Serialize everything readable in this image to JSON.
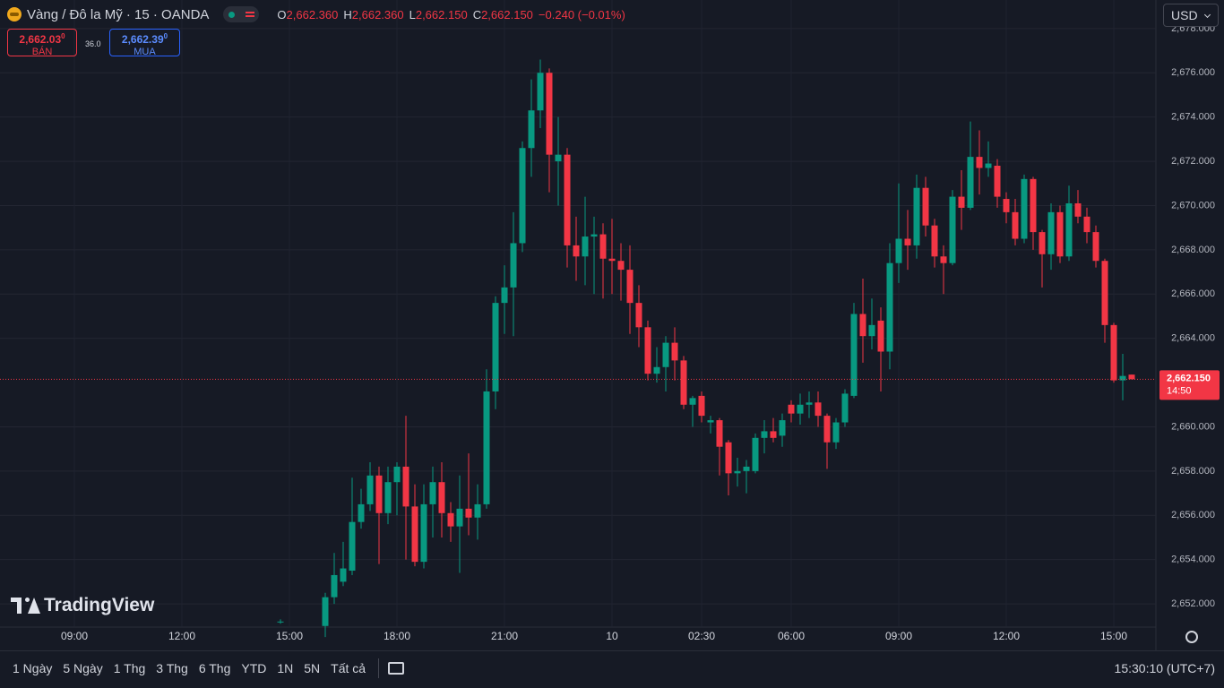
{
  "header": {
    "symbol": "Vàng / Đô la Mỹ · 15 · OANDA",
    "ohlc": [
      {
        "key": "O",
        "value": "2,662.360"
      },
      {
        "key": "H",
        "value": "2,662.360"
      },
      {
        "key": "L",
        "value": "2,662.150"
      },
      {
        "key": "C",
        "value": "2,662.150"
      }
    ],
    "change": "−0.240 (−0.01%)"
  },
  "quote": {
    "sell_price": "2,662.03",
    "sell_sup": "0",
    "sell_label": "BÁN",
    "spread": "36.0",
    "buy_price": "2,662.39",
    "buy_sup": "0",
    "buy_label": "MUA"
  },
  "currency": "USD",
  "watermark": "TradingView",
  "toolbar": {
    "ranges": [
      "1 Ngày",
      "5 Ngày",
      "1 Thg",
      "3 Thg",
      "6 Thg",
      "YTD",
      "1N",
      "5N",
      "Tất cả"
    ],
    "clock": "15:30:10 (UTC+7)"
  },
  "chart_data": {
    "type": "candlestick",
    "categories": [
      "09:00",
      null,
      null,
      null,
      null,
      null,
      null,
      null,
      null,
      null,
      null,
      null,
      "12:00",
      null,
      null,
      null,
      null,
      null,
      null,
      null,
      null,
      null,
      null,
      null,
      "15:00",
      null,
      null,
      null,
      null,
      null,
      null,
      null,
      null,
      null,
      null,
      null,
      "18:00",
      null,
      null,
      null,
      null,
      null,
      null,
      null,
      null,
      null,
      null,
      null,
      "21:00",
      null,
      null,
      null,
      null,
      null,
      null,
      null,
      null,
      null,
      null,
      null,
      "10",
      null,
      null,
      null,
      null,
      null,
      null,
      null,
      null,
      null,
      "02:30",
      null,
      null,
      null,
      null,
      null,
      null,
      null,
      null,
      null,
      "06:00",
      null,
      null,
      null,
      null,
      null,
      null,
      null,
      null,
      null,
      null,
      null,
      "09:00",
      null,
      null,
      null,
      null,
      null,
      null,
      null,
      null,
      null,
      null,
      null,
      "12:00",
      null,
      null,
      null,
      null,
      null,
      null,
      null,
      null,
      null,
      null,
      null,
      "15:00",
      null,
      null
    ],
    "open": [
      null,
      null,
      null,
      null,
      null,
      null,
      null,
      null,
      null,
      null,
      null,
      null,
      null,
      null,
      null,
      null,
      null,
      null,
      null,
      null,
      null,
      null,
      null,
      2651.2,
      null,
      null,
      null,
      null,
      2651.0,
      2652.3,
      2653.0,
      2653.5,
      2655.7,
      2656.5,
      2657.8,
      2656.1,
      2657.5,
      2658.2,
      2656.4,
      2653.9,
      2656.5,
      2657.5,
      2656.1,
      2655.5,
      2656.3,
      2655.9,
      2656.5,
      2661.6,
      2665.6,
      2666.3,
      2668.3,
      2672.6,
      2674.3,
      2676.0,
      2672.0,
      2672.3,
      2668.2,
      2667.7,
      2668.6,
      2668.7,
      2667.6,
      2667.5,
      2667.1,
      2665.6,
      2664.5,
      2662.4,
      2662.7,
      2663.8,
      2663.0,
      2661.0,
      2661.4,
      2660.2,
      2660.3,
      2659.3,
      2657.9,
      2658.0,
      2658.0,
      2659.5,
      2659.8,
      2659.6,
      2661.0,
      2660.6,
      2661.0,
      2661.1,
      2660.5,
      2659.3,
      2660.2,
      2661.4,
      2665.1,
      2664.1,
      2664.8,
      2663.4,
      2667.4,
      2668.5,
      2668.2,
      2670.8,
      2669.1,
      2667.7,
      2667.4,
      2670.4,
      2669.9,
      2672.2,
      2671.7,
      2671.8,
      2670.3,
      2669.7,
      2668.5,
      2671.2,
      2668.8,
      2667.8,
      2669.7,
      2667.7,
      2670.1,
      2669.5,
      2668.8,
      2667.5,
      2664.6,
      2662.1,
      2662.36
    ],
    "high": [
      null,
      null,
      null,
      null,
      null,
      null,
      null,
      null,
      null,
      null,
      null,
      null,
      null,
      null,
      null,
      null,
      null,
      null,
      null,
      null,
      null,
      null,
      null,
      2651.3,
      null,
      null,
      null,
      null,
      2652.5,
      2654.3,
      2654.8,
      2657.7,
      2657.2,
      2658.4,
      2658.2,
      2658.2,
      2658.4,
      2660.5,
      2657.4,
      2657.4,
      2658.2,
      2658.4,
      2656.6,
      2657.8,
      2658.8,
      2657.4,
      2662.6,
      2665.9,
      2667.3,
      2669.7,
      2672.9,
      2675.7,
      2676.6,
      2676.2,
      2674.0,
      2672.6,
      2669.5,
      2670.4,
      2669.5,
      2669.2,
      2669.4,
      2668.3,
      2668.2,
      2666.4,
      2664.8,
      2663.6,
      2664.1,
      2664.5,
      2663.2,
      2661.4,
      2661.6,
      2660.5,
      2660.4,
      2659.4,
      2658.6,
      2658.5,
      2659.7,
      2660.3,
      2660.4,
      2660.6,
      2661.2,
      2661.5,
      2661.6,
      2661.6,
      2660.6,
      2660.4,
      2661.7,
      2665.6,
      2666.7,
      2665.8,
      2665.4,
      2668.3,
      2671.0,
      2669.8,
      2671.4,
      2671.3,
      2669.4,
      2668.2,
      2670.7,
      2671.6,
      2673.8,
      2673.4,
      2672.9,
      2672.1,
      2670.6,
      2670.3,
      2671.4,
      2671.3,
      2668.9,
      2670.1,
      2670.0,
      2670.9,
      2670.7,
      2669.9,
      2669.1,
      2667.6,
      2664.7,
      2663.3,
      2662.36
    ],
    "low": [
      null,
      null,
      null,
      null,
      null,
      null,
      null,
      null,
      null,
      null,
      null,
      null,
      null,
      null,
      null,
      null,
      null,
      null,
      null,
      null,
      null,
      null,
      null,
      2651.1,
      null,
      null,
      null,
      null,
      2650.5,
      2652.0,
      2652.8,
      2653.3,
      2655.4,
      2656.2,
      2653.8,
      2655.6,
      2656.0,
      2654.0,
      2653.7,
      2653.6,
      2655.0,
      2655.0,
      2654.8,
      2653.4,
      2655.1,
      2654.9,
      2656.3,
      2660.8,
      2664.2,
      2664.1,
      2667.9,
      2671.3,
      2673.5,
      2670.6,
      2670.0,
      2667.2,
      2666.6,
      2666.4,
      2666.0,
      2665.8,
      2666.0,
      2665.7,
      2664.2,
      2663.6,
      2662.1,
      2662.0,
      2661.6,
      2662.1,
      2660.8,
      2660.0,
      2660.2,
      2659.7,
      2657.8,
      2656.9,
      2657.3,
      2657.0,
      2657.9,
      2658.8,
      2659.3,
      2659.1,
      2660.2,
      2660.1,
      2660.4,
      2660.0,
      2658.1,
      2659.0,
      2660.0,
      2661.3,
      2662.9,
      2663.5,
      2661.6,
      2662.6,
      2666.5,
      2667.1,
      2667.6,
      2668.6,
      2667.2,
      2666.0,
      2667.3,
      2668.9,
      2669.8,
      2670.5,
      2671.3,
      2669.9,
      2669.2,
      2668.2,
      2668.3,
      2668.0,
      2666.3,
      2667.1,
      2667.4,
      2667.5,
      2669.2,
      2668.3,
      2667.2,
      2663.8,
      2662.0,
      2661.2,
      2662.15
    ],
    "close": [
      null,
      null,
      null,
      null,
      null,
      null,
      null,
      null,
      null,
      null,
      null,
      null,
      null,
      null,
      null,
      null,
      null,
      null,
      null,
      null,
      null,
      null,
      null,
      2651.2,
      null,
      null,
      null,
      null,
      2652.3,
      2653.3,
      2653.6,
      2655.7,
      2656.5,
      2657.8,
      2656.1,
      2657.5,
      2658.2,
      2656.4,
      2653.9,
      2656.5,
      2657.5,
      2656.1,
      2655.5,
      2656.3,
      2655.9,
      2656.5,
      2661.6,
      2665.6,
      2666.3,
      2668.3,
      2672.6,
      2674.3,
      2676.0,
      2672.3,
      2672.3,
      2668.2,
      2667.7,
      2668.6,
      2668.7,
      2667.6,
      2667.5,
      2667.1,
      2665.6,
      2664.5,
      2662.4,
      2662.7,
      2663.8,
      2663.0,
      2661.0,
      2661.3,
      2660.5,
      2660.3,
      2659.1,
      2657.9,
      2658.0,
      2658.2,
      2659.5,
      2659.8,
      2659.5,
      2660.3,
      2660.6,
      2661.0,
      2661.1,
      2660.5,
      2659.3,
      2660.2,
      2661.5,
      2665.1,
      2664.1,
      2664.6,
      2663.4,
      2667.4,
      2668.5,
      2668.2,
      2670.8,
      2669.1,
      2667.7,
      2667.4,
      2670.4,
      2669.9,
      2672.2,
      2671.7,
      2671.9,
      2670.4,
      2669.7,
      2668.5,
      2671.2,
      2668.8,
      2667.8,
      2669.7,
      2667.7,
      2670.1,
      2669.5,
      2668.8,
      2667.5,
      2664.6,
      2662.1,
      2662.3,
      2662.15
    ],
    "up_color": "#089981",
    "down_color": "#f23645",
    "ylim": [
      2650.95,
      2679.29
    ],
    "yticks": [
      {
        "value": 2652,
        "label": "2,652.000"
      },
      {
        "value": 2654,
        "label": "2,654.000"
      },
      {
        "value": 2656,
        "label": "2,656.000"
      },
      {
        "value": 2658,
        "label": "2,658.000"
      },
      {
        "value": 2660,
        "label": "2,660.000"
      },
      {
        "value": 2664,
        "label": "2,664.000"
      },
      {
        "value": 2666,
        "label": "2,666.000"
      },
      {
        "value": 2668,
        "label": "2,668.000"
      },
      {
        "value": 2670,
        "label": "2,670.000"
      },
      {
        "value": 2672,
        "label": "2,672.000"
      },
      {
        "value": 2674,
        "label": "2,674.000"
      },
      {
        "value": 2676,
        "label": "2,676.000"
      },
      {
        "value": 2678,
        "label": "2,678.000"
      }
    ],
    "grid": true,
    "last_price": {
      "value": 2662.15,
      "label": "2,662.150"
    },
    "countdown": "14:50"
  }
}
